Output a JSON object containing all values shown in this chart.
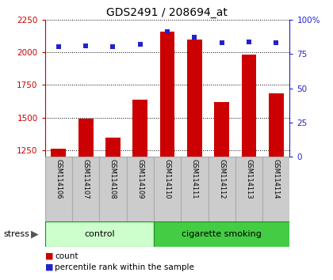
{
  "title": "GDS2491 / 208694_at",
  "samples": [
    "GSM114106",
    "GSM114107",
    "GSM114108",
    "GSM114109",
    "GSM114110",
    "GSM114111",
    "GSM114112",
    "GSM114113",
    "GSM114114"
  ],
  "counts": [
    1262,
    1490,
    1345,
    1635,
    2160,
    2100,
    1620,
    1980,
    1685
  ],
  "percentiles": [
    80,
    81,
    80,
    82,
    91,
    87,
    83,
    84,
    83
  ],
  "bar_color": "#cc0000",
  "dot_color": "#2222cc",
  "ylim_left": [
    1200,
    2250
  ],
  "ylim_right": [
    0,
    100
  ],
  "yticks_left": [
    1250,
    1500,
    1750,
    2000,
    2250
  ],
  "yticks_right": [
    0,
    25,
    50,
    75,
    100
  ],
  "groups": [
    {
      "label": "control",
      "start": 0,
      "end": 4,
      "color": "#ccffcc"
    },
    {
      "label": "cigarette smoking",
      "start": 4,
      "end": 9,
      "color": "#44cc44"
    }
  ],
  "stress_label": "stress",
  "legend_count": "count",
  "legend_pct": "percentile rank within the sample",
  "bg_color": "#ffffff",
  "bar_bottom": 1200,
  "label_bg": "#cccccc",
  "label_edge": "#aaaaaa"
}
